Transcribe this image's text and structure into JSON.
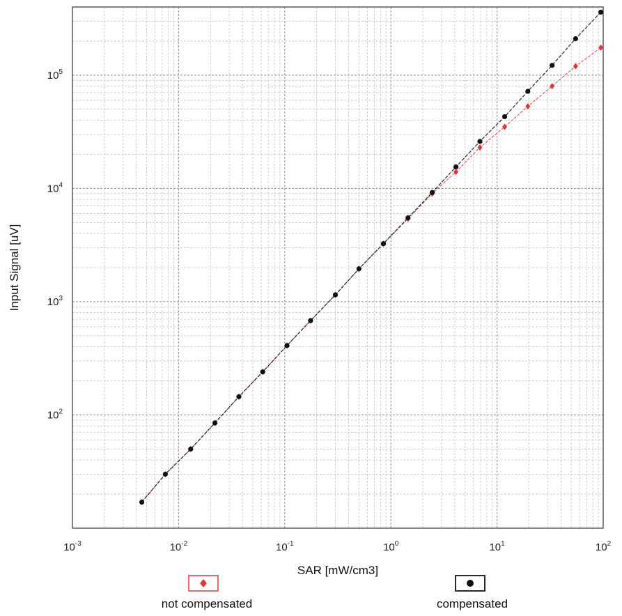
{
  "chart_data": {
    "type": "scatter",
    "title": "",
    "xlabel": "SAR [mW/cm3]",
    "ylabel": "Input Signal [uV]",
    "xscale": "log",
    "yscale": "log",
    "xlim": [
      0.001,
      100
    ],
    "ylim": [
      10,
      400000
    ],
    "grid": true,
    "legend_position": "bottom",
    "x_ticks": [
      {
        "base": "10",
        "exp": "-3",
        "value": 0.001
      },
      {
        "base": "10",
        "exp": "-2",
        "value": 0.01
      },
      {
        "base": "10",
        "exp": "-1",
        "value": 0.1
      },
      {
        "base": "10",
        "exp": "0",
        "value": 1
      },
      {
        "base": "10",
        "exp": "1",
        "value": 10
      },
      {
        "base": "10",
        "exp": "2",
        "value": 100
      }
    ],
    "y_ticks": [
      {
        "base": "10",
        "exp": "2",
        "value": 100
      },
      {
        "base": "10",
        "exp": "3",
        "value": 1000
      },
      {
        "base": "10",
        "exp": "4",
        "value": 10000
      },
      {
        "base": "10",
        "exp": "5",
        "value": 100000
      }
    ],
    "series": [
      {
        "name": "not compensated",
        "color": "#d83a3a",
        "marker": "diamond",
        "x": [
          0.0045,
          0.0075,
          0.013,
          0.022,
          0.037,
          0.062,
          0.105,
          0.175,
          0.3,
          0.5,
          0.85,
          1.45,
          2.45,
          4.1,
          6.9,
          11.8,
          19.5,
          33,
          55,
          95
        ],
        "y": [
          17,
          30,
          50,
          85,
          145,
          240,
          410,
          680,
          1150,
          1950,
          3250,
          5400,
          9000,
          14000,
          23000,
          35000,
          53000,
          80000,
          120000,
          175000
        ]
      },
      {
        "name": "compensated",
        "color": "#111111",
        "marker": "circle",
        "x": [
          0.0045,
          0.0075,
          0.013,
          0.022,
          0.037,
          0.062,
          0.105,
          0.175,
          0.3,
          0.5,
          0.85,
          1.45,
          2.45,
          4.1,
          6.9,
          11.8,
          19.5,
          33,
          55,
          95
        ],
        "y": [
          17,
          30,
          50,
          85,
          145,
          240,
          410,
          680,
          1150,
          1950,
          3250,
          5500,
          9200,
          15500,
          26000,
          43000,
          72000,
          122000,
          210000,
          360000
        ]
      }
    ]
  },
  "legend": {
    "items": [
      {
        "label": "not compensated",
        "color": "#d83a3a",
        "marker": "diamond"
      },
      {
        "label": "compensated",
        "color": "#111111",
        "marker": "circle"
      }
    ]
  }
}
